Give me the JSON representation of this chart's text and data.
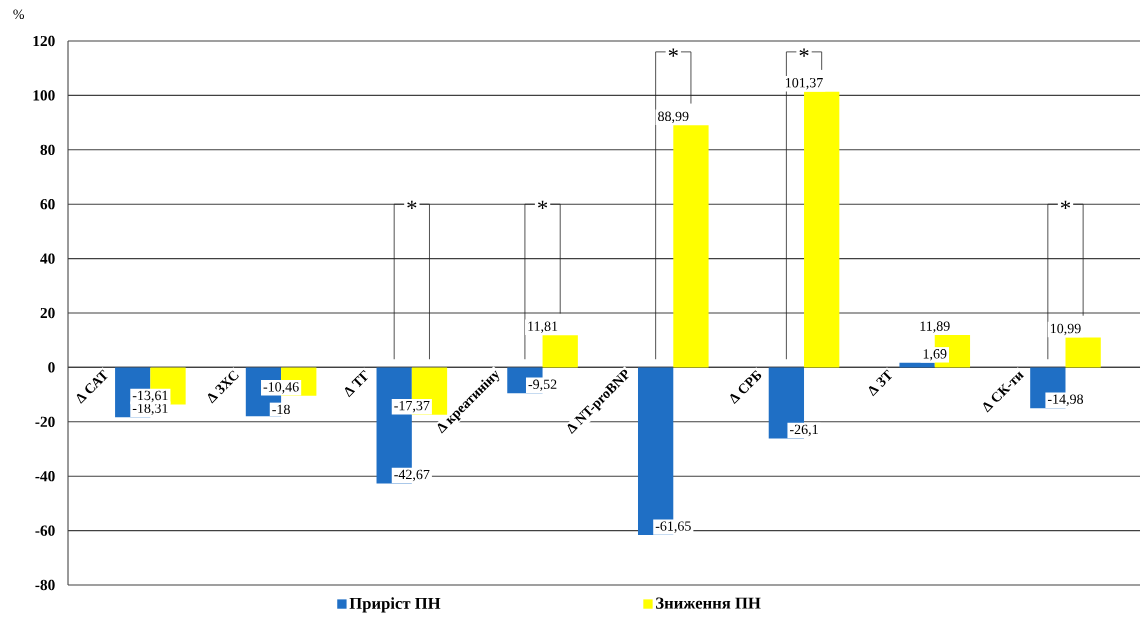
{
  "chart_data": {
    "type": "bar",
    "ylabel": "%",
    "categories": [
      "Δ САТ",
      "Δ ЗХС",
      "Δ ТГ",
      "Δ креатиніну",
      "Δ NT-proBNP",
      "Δ СРБ",
      "Δ ЗТ",
      "Δ СК-ти"
    ],
    "series": [
      {
        "name": "Приріст ПН",
        "color": "#1f6fc5",
        "values": [
          -18.31,
          -18,
          -42.67,
          -9.52,
          -61.65,
          -26.1,
          1.69,
          -14.98
        ],
        "value_labels": [
          "-18,31",
          "-18",
          "-42,67",
          "-9,52",
          "-61,65",
          "-26,1",
          "1,69",
          "-14,98"
        ]
      },
      {
        "name": "Зниження ПН",
        "color": "#ffff00",
        "values": [
          -13.61,
          -10.46,
          -17.37,
          11.81,
          88.99,
          101.37,
          11.89,
          10.99
        ],
        "value_labels": [
          "-13,61",
          "-10,46",
          "-17,37",
          "11,81",
          "88,99",
          "101,37",
          "11,89",
          "10,99"
        ]
      }
    ],
    "ylim": [
      -80,
      120
    ],
    "yticks": [
      -80,
      -60,
      -40,
      -20,
      0,
      20,
      40,
      60,
      80,
      100,
      120
    ],
    "grid": "y",
    "legend": "bottom",
    "annotations": [
      "*",
      "*",
      "*",
      "*",
      "*"
    ]
  }
}
